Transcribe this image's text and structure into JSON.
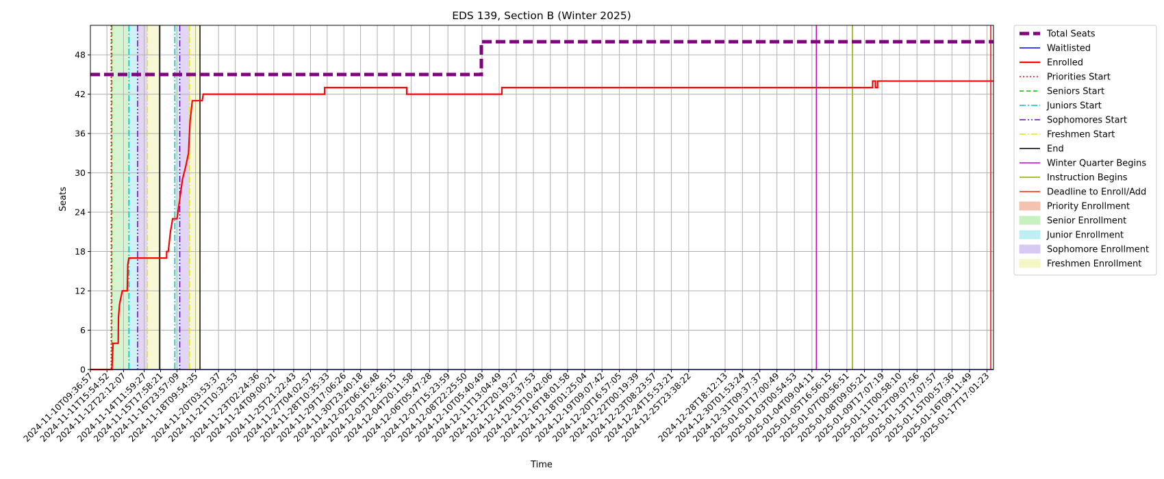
{
  "chart_data": {
    "type": "line",
    "title": "EDS 139, Section B (Winter 2025)",
    "xlabel": "Time",
    "ylabel": "Seats",
    "xlim": [
      "2024-11-10T09:36:57",
      "2025-01-18T05:00:00"
    ],
    "ylim": [
      0,
      52.5
    ],
    "yticks": [
      0,
      6,
      12,
      18,
      24,
      30,
      36,
      42,
      48
    ],
    "grid": true,
    "legend_position": "outside-right",
    "xtick_labels": [
      "2024-11-10T09:36:57",
      "2024-11-11T15:54:52",
      "2024-11-12T22:12:07",
      "2024-11-14T11:59:27",
      "2024-11-15T17:58:21",
      "2024-11-16T23:57:09",
      "2024-11-18T09:54:35",
      "2024-11-20T03:53:37",
      "2024-11-21T10:32:53",
      "2024-11-23T02:24:36",
      "2024-11-24T09:00:21",
      "2024-11-25T21:22:43",
      "2024-11-27T04:02:57",
      "2024-11-28T10:35:33",
      "2024-11-29T17:06:26",
      "2024-11-30T23:40:18",
      "2024-12-02T06:16:48",
      "2024-12-03T12:56:15",
      "2024-12-04T20:11:58",
      "2024-12-06T05:47:28",
      "2024-12-07T15:23:59",
      "2024-12-08T22:25:50",
      "2024-12-10T05:40:49",
      "2024-12-11T13:04:49",
      "2024-12-12T20:19:27",
      "2024-12-14T03:37:53",
      "2024-12-15T10:42:06",
      "2024-12-16T18:01:58",
      "2024-12-18T01:25:04",
      "2024-12-19T09:07:42",
      "2024-12-20T16:57:05",
      "2024-12-22T00:19:39",
      "2024-12-23T08:23:57",
      "2024-12-24T15:53:21",
      "2024-12-25T23:38:22",
      "2024-12-28T18:12:13",
      "2024-12-30T01:53:24",
      "2024-12-31T09:37:37",
      "2025-01-01T17:00:49",
      "2025-01-03T00:54:53",
      "2025-01-04T09:04:11",
      "2025-01-05T16:56:15",
      "2025-01-07T00:56:51",
      "2025-01-08T09:05:21",
      "2025-01-09T17:07:19",
      "2025-01-11T00:58:10",
      "2025-01-12T09:07:56",
      "2025-01-13T17:07:57",
      "2025-01-15T00:57:36",
      "2025-01-16T09:11:49",
      "2025-01-17T17:01:23"
    ],
    "series": [
      {
        "name": "Total Seats",
        "color": "#800080",
        "style": "dashed-thick",
        "points": [
          [
            "2024-11-10T09:36:57",
            45
          ],
          [
            "2024-12-10T04:30:00",
            45
          ],
          [
            "2024-12-10T04:30:00",
            50
          ],
          [
            "2025-01-18T05:00:00",
            50
          ]
        ]
      },
      {
        "name": "Waitlisted",
        "color": "#0000ff",
        "style": "solid-thin",
        "points": [
          [
            "2024-11-10T09:36:57",
            0
          ],
          [
            "2025-01-18T05:00:00",
            0
          ]
        ]
      },
      {
        "name": "Enrolled",
        "color": "#ff0000",
        "style": "solid-thick",
        "points": [
          [
            "2024-11-10T09:36:57",
            0
          ],
          [
            "2024-11-12T01:00:00",
            0
          ],
          [
            "2024-11-12T02:00:00",
            2
          ],
          [
            "2024-11-12T03:00:00",
            4
          ],
          [
            "2024-11-12T12:30:00",
            4
          ],
          [
            "2024-11-12T13:00:00",
            8
          ],
          [
            "2024-11-12T15:00:00",
            10
          ],
          [
            "2024-11-12T20:00:00",
            12
          ],
          [
            "2024-11-13T05:00:00",
            12
          ],
          [
            "2024-11-13T06:00:00",
            16
          ],
          [
            "2024-11-13T08:00:00",
            17
          ],
          [
            "2024-11-16T05:00:00",
            17
          ],
          [
            "2024-11-16T05:00:00",
            18
          ],
          [
            "2024-11-16T08:00:00",
            18
          ],
          [
            "2024-11-16T12:00:00",
            21
          ],
          [
            "2024-11-16T16:00:00",
            23
          ],
          [
            "2024-11-17T00:00:00",
            23
          ],
          [
            "2024-11-17T10:00:00",
            29
          ],
          [
            "2024-11-17T16:00:00",
            31
          ],
          [
            "2024-11-17T21:00:00",
            33
          ],
          [
            "2024-11-18T00:00:00",
            38
          ],
          [
            "2024-11-18T04:00:00",
            41
          ],
          [
            "2024-11-18T22:00:00",
            41
          ],
          [
            "2024-11-19T00:00:00",
            42
          ],
          [
            "2024-11-28T06:00:00",
            42
          ],
          [
            "2024-11-28T06:00:00",
            43
          ],
          [
            "2024-12-04T12:00:00",
            43
          ],
          [
            "2024-12-04T12:00:00",
            42
          ],
          [
            "2024-12-11T18:00:00",
            42
          ],
          [
            "2024-12-11T18:00:00",
            43
          ],
          [
            "2025-01-09T00:00:00",
            43
          ],
          [
            "2025-01-09T00:00:00",
            44
          ],
          [
            "2025-01-09T05:00:00",
            44
          ],
          [
            "2025-01-09T05:00:00",
            43
          ],
          [
            "2025-01-09T09:00:00",
            43
          ],
          [
            "2025-01-09T09:00:00",
            44
          ],
          [
            "2025-01-18T05:00:00",
            44
          ]
        ]
      }
    ],
    "vlines": [
      {
        "name": "Priorities Start",
        "color": "#ff0000",
        "style": "dotted",
        "x": "2024-11-11T23:36:00"
      },
      {
        "name": "Seniors Start",
        "color": "#00bb00",
        "style": "dashed",
        "x": "2024-11-12T00:56:00"
      },
      {
        "name": "Juniors Start",
        "color": "#00bfbf",
        "style": "dashdot",
        "x": "2024-11-13T08:05:00"
      },
      {
        "name": "Sophomores Start",
        "color": "#6600cc",
        "style": "dashdotdot",
        "x": "2024-11-14T00:00:00"
      },
      {
        "name": "Freshmen Start",
        "color": "#e6e600",
        "style": "dashdot",
        "x": "2024-11-14T18:00:00"
      },
      {
        "name": "End",
        "color": "#000000",
        "style": "solid",
        "x": "2024-11-15T16:00:00"
      },
      {
        "name": "Juniors Start",
        "color": "#00bfbf",
        "style": "dashdot",
        "x": "2024-11-16T20:00:00"
      },
      {
        "name": "Sophomores Start",
        "color": "#6600cc",
        "style": "dashdotdot",
        "x": "2024-11-17T05:00:00"
      },
      {
        "name": "Freshmen Start",
        "color": "#e6e600",
        "style": "dashdot",
        "x": "2024-11-17T23:00:00"
      },
      {
        "name": "End",
        "color": "#000000",
        "style": "solid",
        "x": "2024-11-18T18:00:00"
      },
      {
        "name": "Winter Quarter Begins",
        "color": "#cc00cc",
        "style": "solid",
        "x": "2025-01-04T17:00:00"
      },
      {
        "name": "Instruction Begins",
        "color": "#88aa00",
        "style": "solid",
        "x": "2025-01-07T11:00:00"
      },
      {
        "name": "Deadline to Enroll/Add",
        "color": "#ff0000",
        "style": "solid",
        "x": "2025-01-18T00:00:00"
      }
    ],
    "spans": [
      {
        "name": "Priority Enrollment",
        "color": "#f4c2b0",
        "x0": "2024-11-11T23:36:00",
        "x1": "2024-11-12T00:56:00"
      },
      {
        "name": "Senior Enrollment",
        "color": "#c8f0c0",
        "x0": "2024-11-12T00:56:00",
        "x1": "2024-11-13T08:05:00"
      },
      {
        "name": "Junior Enrollment",
        "color": "#bdeef2",
        "x0": "2024-11-13T08:05:00",
        "x1": "2024-11-14T00:00:00"
      },
      {
        "name": "Sophomore Enrollment",
        "color": "#d8c8f4",
        "x0": "2024-11-14T00:00:00",
        "x1": "2024-11-14T18:00:00"
      },
      {
        "name": "Freshmen Enrollment",
        "color": "#f4f6c8",
        "x0": "2024-11-14T18:00:00",
        "x1": "2024-11-15T16:00:00"
      },
      {
        "name": "Junior Enrollment",
        "color": "#bdeef2",
        "x0": "2024-11-16T20:00:00",
        "x1": "2024-11-17T05:00:00"
      },
      {
        "name": "Sophomore Enrollment",
        "color": "#d8c8f4",
        "x0": "2024-11-17T05:00:00",
        "x1": "2024-11-17T23:00:00"
      },
      {
        "name": "Freshmen Enrollment",
        "color": "#f4f6c8",
        "x0": "2024-11-17T23:00:00",
        "x1": "2024-11-18T18:00:00"
      }
    ],
    "legend": [
      {
        "label": "Total Seats",
        "kind": "line",
        "color": "#800080",
        "style": "dashed-thick"
      },
      {
        "label": "Waitlisted",
        "kind": "line",
        "color": "#0000ff",
        "style": "solid-thin"
      },
      {
        "label": "Enrolled",
        "kind": "line",
        "color": "#ff0000",
        "style": "solid-thick"
      },
      {
        "label": "Priorities Start",
        "kind": "line",
        "color": "#ff0000",
        "style": "dotted"
      },
      {
        "label": "Seniors Start",
        "kind": "line",
        "color": "#00bb00",
        "style": "dashed"
      },
      {
        "label": "Juniors Start",
        "kind": "line",
        "color": "#00bfbf",
        "style": "dashdot"
      },
      {
        "label": "Sophomores Start",
        "kind": "line",
        "color": "#6600cc",
        "style": "dashdotdot"
      },
      {
        "label": "Freshmen Start",
        "kind": "line",
        "color": "#e6e600",
        "style": "dashdot"
      },
      {
        "label": "End",
        "kind": "line",
        "color": "#000000",
        "style": "solid"
      },
      {
        "label": "Winter Quarter Begins",
        "kind": "line",
        "color": "#cc00cc",
        "style": "solid"
      },
      {
        "label": "Instruction Begins",
        "kind": "line",
        "color": "#88aa00",
        "style": "solid"
      },
      {
        "label": "Deadline to Enroll/Add",
        "kind": "line",
        "color": "#ff2200",
        "style": "solid"
      },
      {
        "label": "Priority Enrollment",
        "kind": "patch",
        "color": "#f4c2b0"
      },
      {
        "label": "Senior Enrollment",
        "kind": "patch",
        "color": "#c8f0c0"
      },
      {
        "label": "Junior Enrollment",
        "kind": "patch",
        "color": "#bdeef2"
      },
      {
        "label": "Sophomore Enrollment",
        "kind": "patch",
        "color": "#d8c8f4"
      },
      {
        "label": "Freshmen Enrollment",
        "kind": "patch",
        "color": "#f4f6c8"
      }
    ]
  }
}
